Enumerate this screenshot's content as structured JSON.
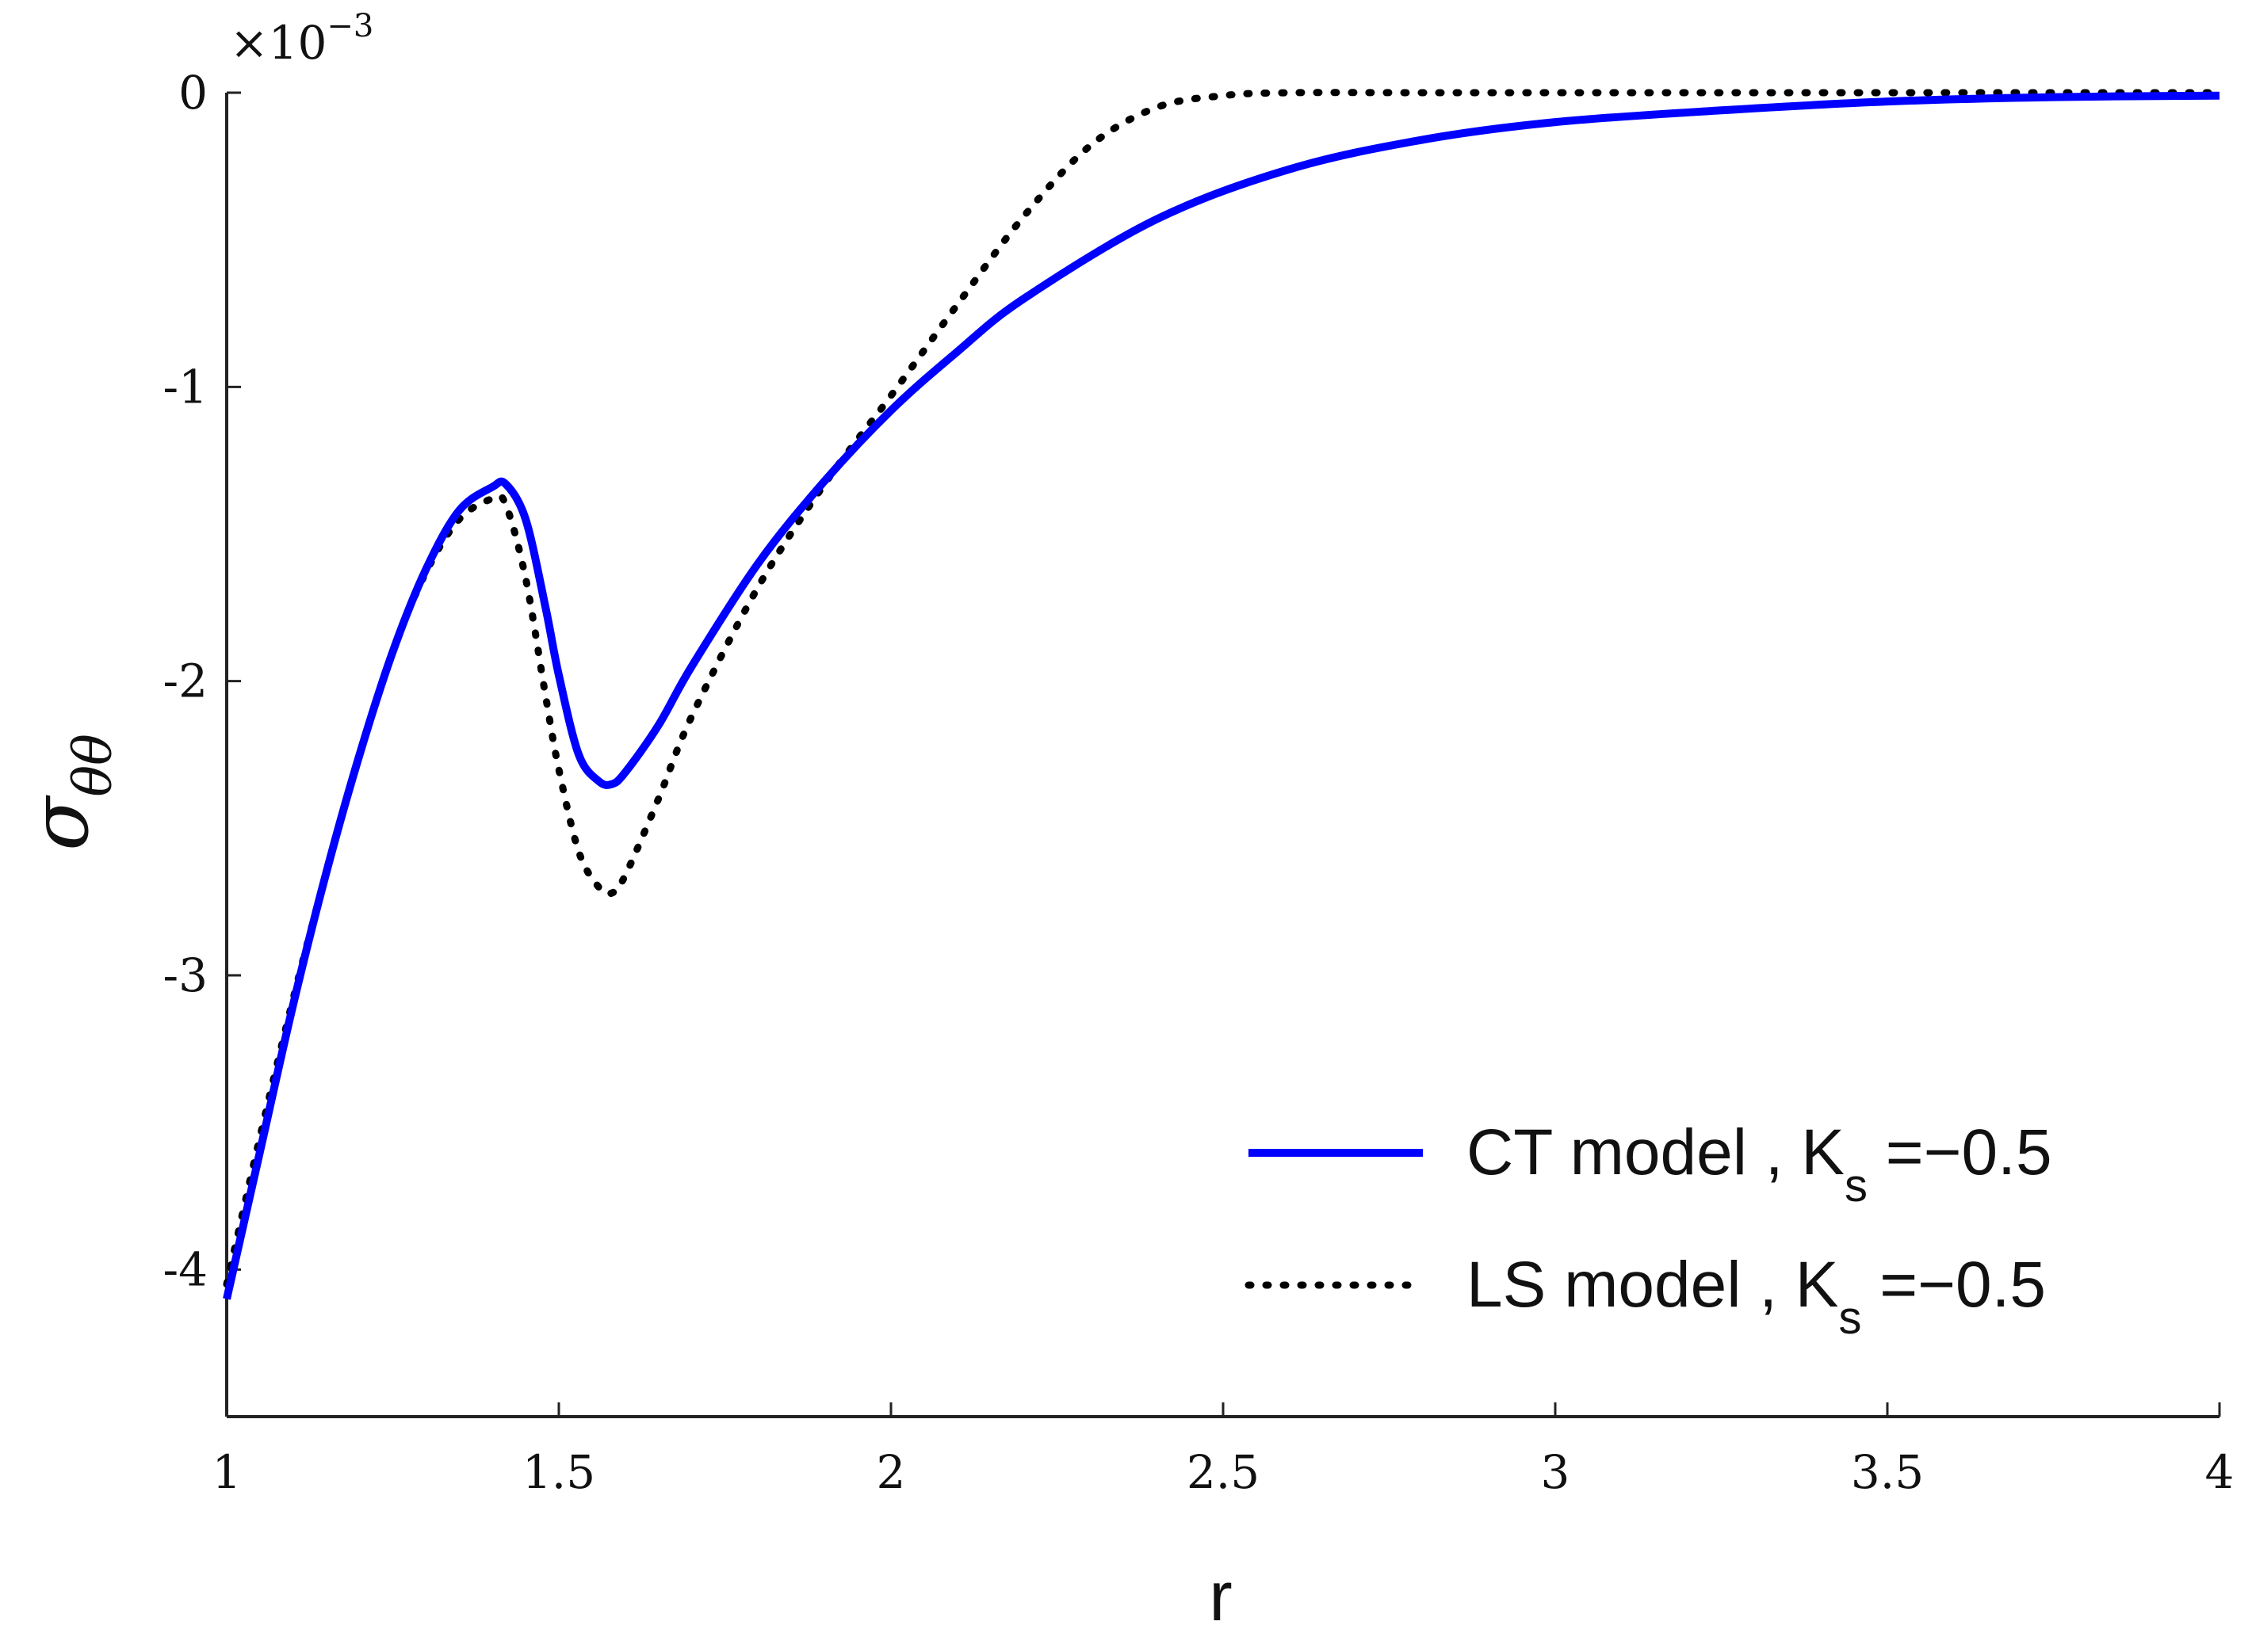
{
  "chart_data": {
    "type": "line",
    "xlabel": "r",
    "ylabel": "σ",
    "ylabel_subscript": "θθ",
    "y_multiplier_text": "×10",
    "y_multiplier_exponent": "−3",
    "xlim": [
      1,
      4
    ],
    "ylim": [
      -4.5,
      0
    ],
    "x_ticks": [
      1,
      1.5,
      2,
      2.5,
      3,
      3.5,
      4
    ],
    "x_tick_labels": [
      "1",
      "1.5",
      "2",
      "2.5",
      "3",
      "3.5",
      "4"
    ],
    "y_ticks": [
      0,
      -1,
      -2,
      -3,
      -4
    ],
    "y_tick_labels": [
      "0",
      "-1",
      "-2",
      "-3",
      "-4"
    ],
    "grid": false,
    "legend_position": "bottom-right",
    "series": [
      {
        "name": "CT model , K",
        "name_subscript": "s",
        "name_suffix": " =−0.5",
        "color": "#0000ff",
        "style": "solid",
        "x": [
          1.0,
          1.05,
          1.1,
          1.15,
          1.2,
          1.25,
          1.3,
          1.35,
          1.4,
          1.42,
          1.45,
          1.48,
          1.5,
          1.53,
          1.56,
          1.58,
          1.6,
          1.65,
          1.7,
          1.8,
          1.9,
          2.0,
          2.1,
          2.2,
          2.4,
          2.6,
          2.8,
          3.0,
          3.25,
          3.5,
          3.75,
          4.0
        ],
        "y": [
          -4.1,
          -3.6,
          -3.1,
          -2.65,
          -2.25,
          -1.9,
          -1.62,
          -1.42,
          -1.34,
          -1.33,
          -1.45,
          -1.75,
          -1.98,
          -2.25,
          -2.34,
          -2.35,
          -2.31,
          -2.15,
          -1.95,
          -1.6,
          -1.32,
          -1.08,
          -0.88,
          -0.7,
          -0.43,
          -0.26,
          -0.16,
          -0.1,
          -0.06,
          -0.03,
          -0.015,
          -0.01
        ]
      },
      {
        "name": "LS model , K",
        "name_subscript": "s",
        "name_suffix": " =−0.5",
        "color": "#000000",
        "style": "dotted",
        "x": [
          1.0,
          1.05,
          1.1,
          1.15,
          1.2,
          1.25,
          1.3,
          1.35,
          1.4,
          1.42,
          1.45,
          1.48,
          1.5,
          1.53,
          1.56,
          1.58,
          1.6,
          1.65,
          1.7,
          1.8,
          1.9,
          2.0,
          2.1,
          2.2,
          2.3,
          2.4,
          2.5,
          2.6,
          2.8,
          3.0,
          3.5,
          4.0
        ],
        "y": [
          -4.05,
          -3.55,
          -3.08,
          -2.65,
          -2.25,
          -1.9,
          -1.63,
          -1.45,
          -1.38,
          -1.4,
          -1.65,
          -2.05,
          -2.3,
          -2.58,
          -2.7,
          -2.72,
          -2.66,
          -2.4,
          -2.12,
          -1.68,
          -1.33,
          -1.03,
          -0.72,
          -0.42,
          -0.18,
          -0.05,
          -0.01,
          0.0,
          0.0,
          0.0,
          0.0,
          0.0
        ]
      }
    ]
  }
}
